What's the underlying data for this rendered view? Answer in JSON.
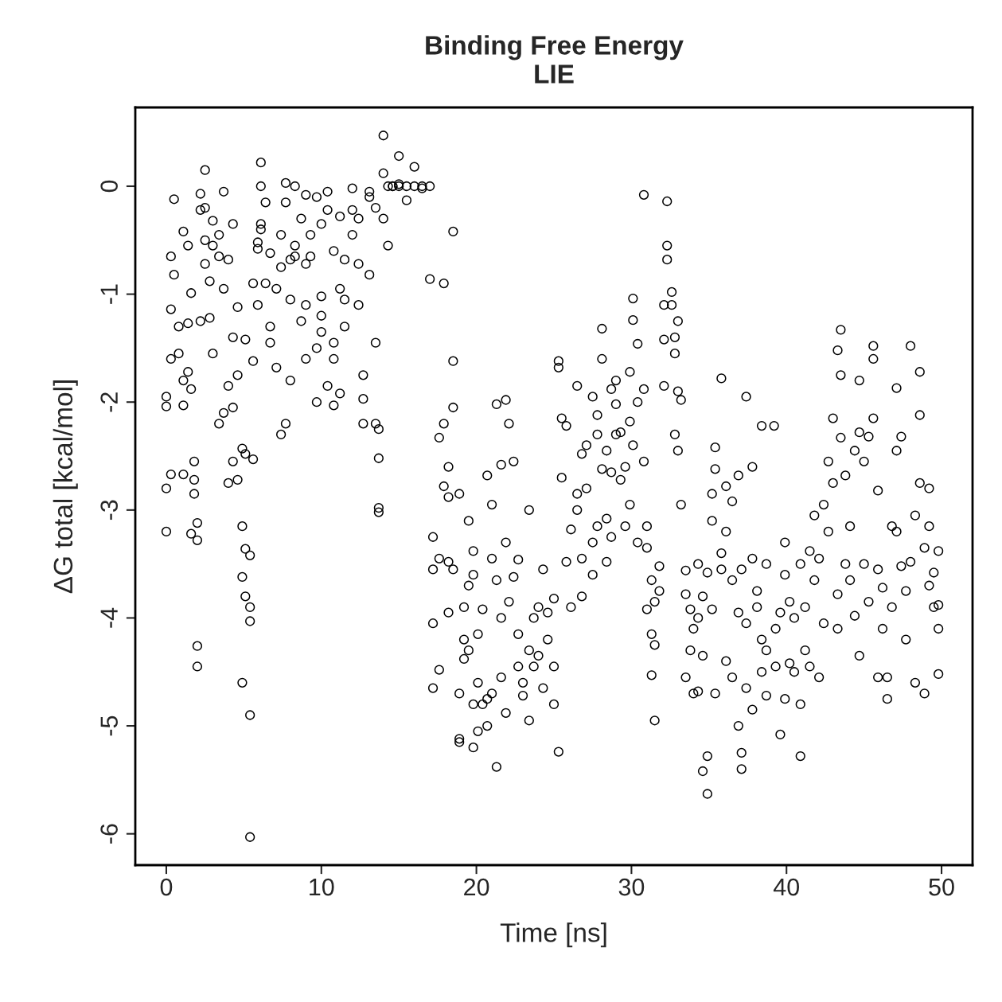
{
  "chart_data": {
    "type": "scatter",
    "title": "Binding Free Energy\nLIE",
    "xlabel": "Time [ns]",
    "ylabel": "ΔG total [kcal/mol]",
    "xlim": [
      -2,
      52
    ],
    "ylim": [
      -6.29,
      0.73
    ],
    "xticks": [
      0,
      10,
      20,
      30,
      40,
      50
    ],
    "yticks": [
      -6,
      -5,
      -4,
      -3,
      -2,
      -1,
      0
    ],
    "grid": false,
    "marker": "circle",
    "series": [
      {
        "color": "#000000",
        "x": [
          0.0,
          0.0,
          0.0,
          0.0,
          0.3,
          0.3,
          0.3,
          0.3,
          0.5,
          0.5,
          0.8,
          0.8,
          1.1,
          1.1,
          1.1,
          1.1,
          1.4,
          1.4,
          1.4,
          1.6,
          1.6,
          1.6,
          1.8,
          1.8,
          1.8,
          2.0,
          2.0,
          2.0,
          2.0,
          2.2,
          2.2,
          2.2,
          2.5,
          2.5,
          2.5,
          2.5,
          2.8,
          2.8,
          3.0,
          3.0,
          3.0,
          3.4,
          3.4,
          3.4,
          3.7,
          3.7,
          3.7,
          4.0,
          4.0,
          4.0,
          4.3,
          4.3,
          4.3,
          4.3,
          4.6,
          4.6,
          4.6,
          4.9,
          4.9,
          4.9,
          4.9,
          5.1,
          5.1,
          5.1,
          5.1,
          5.4,
          5.4,
          5.4,
          5.4,
          5.4,
          5.6,
          5.6,
          5.6,
          5.9,
          5.9,
          5.9,
          6.1,
          6.1,
          6.1,
          6.1,
          6.4,
          6.4,
          6.7,
          6.7,
          6.7,
          7.1,
          7.1,
          7.4,
          7.4,
          7.4,
          7.7,
          7.7,
          7.7,
          8.0,
          8.0,
          8.0,
          8.3,
          8.3,
          8.3,
          8.7,
          8.7,
          9.0,
          9.0,
          9.0,
          9.0,
          9.3,
          9.3,
          9.7,
          9.7,
          9.7,
          10.0,
          10.0,
          10.0,
          10.0,
          10.4,
          10.4,
          10.4,
          10.8,
          10.8,
          10.8,
          10.8,
          11.2,
          11.2,
          11.2,
          11.5,
          11.5,
          11.5,
          12.0,
          12.0,
          12.0,
          12.4,
          12.4,
          12.4,
          12.7,
          12.7,
          12.7,
          13.1,
          13.1,
          13.1,
          13.5,
          13.5,
          13.5,
          13.7,
          13.7,
          13.7,
          13.7,
          14.0,
          14.0,
          14.0,
          14.3,
          14.3,
          14.6,
          14.6,
          15.0,
          15.0,
          15.0,
          15.5,
          15.5,
          16.0,
          16.0,
          16.5,
          16.5,
          17.0,
          17.0,
          17.2,
          17.2,
          17.2,
          17.2,
          17.6,
          17.6,
          17.6,
          17.9,
          17.9,
          17.9,
          18.2,
          18.2,
          18.2,
          18.2,
          18.5,
          18.5,
          18.5,
          18.5,
          18.9,
          18.9,
          18.9,
          18.9,
          19.2,
          19.2,
          19.2,
          19.5,
          19.5,
          19.5,
          19.8,
          19.8,
          19.8,
          19.8,
          20.1,
          20.1,
          20.1,
          20.4,
          20.4,
          20.7,
          20.7,
          20.7,
          21.0,
          21.0,
          21.0,
          21.3,
          21.3,
          21.3,
          21.6,
          21.6,
          21.6,
          21.9,
          21.9,
          21.9,
          22.1,
          22.1,
          22.4,
          22.4,
          22.7,
          22.7,
          22.7,
          23.0,
          23.0,
          23.4,
          23.4,
          23.4,
          23.7,
          23.7,
          24.0,
          24.0,
          24.3,
          24.3,
          24.6,
          24.6,
          25.0,
          25.0,
          25.0,
          25.3,
          25.3,
          25.3,
          25.5,
          25.5,
          25.8,
          25.8,
          26.1,
          26.1,
          26.5,
          26.5,
          26.5,
          26.8,
          26.8,
          26.8,
          27.1,
          27.1,
          27.5,
          27.5,
          27.5,
          27.8,
          27.8,
          27.8,
          28.1,
          28.1,
          28.1,
          28.4,
          28.4,
          28.4,
          28.7,
          28.7,
          28.7,
          29.0,
          29.0,
          29.0,
          29.3,
          29.3,
          29.6,
          29.6,
          29.9,
          29.9,
          29.9,
          30.1,
          30.1,
          30.1,
          30.4,
          30.4,
          30.4,
          30.8,
          30.8,
          30.8,
          31.0,
          31.0,
          31.0,
          31.3,
          31.3,
          31.3,
          31.5,
          31.5,
          31.5,
          31.8,
          31.8,
          32.1,
          32.1,
          32.1,
          32.3,
          32.3,
          32.3,
          32.6,
          32.6,
          32.8,
          32.8,
          32.8,
          33.0,
          33.0,
          33.0,
          33.2,
          33.2,
          33.5,
          33.5,
          33.5,
          33.8,
          33.8,
          34.0,
          34.0,
          34.3,
          34.3,
          34.3,
          34.6,
          34.6,
          34.6,
          34.9,
          34.9,
          34.9,
          35.2,
          35.2,
          35.2,
          35.4,
          35.4,
          35.4,
          35.8,
          35.8,
          35.8,
          36.1,
          36.1,
          36.1,
          36.5,
          36.5,
          36.5,
          36.9,
          36.9,
          36.9,
          37.1,
          37.1,
          37.1,
          37.4,
          37.4,
          37.4,
          37.8,
          37.8,
          37.8,
          38.1,
          38.1,
          38.4,
          38.4,
          38.4,
          38.7,
          38.7,
          38.7,
          39.2,
          39.3,
          39.3,
          39.6,
          39.6,
          39.9,
          39.9,
          39.9,
          40.2,
          40.2,
          40.5,
          40.5,
          40.9,
          40.9,
          40.9,
          41.2,
          41.2,
          41.5,
          41.5,
          41.8,
          41.8,
          42.1,
          42.1,
          42.4,
          42.4,
          42.7,
          42.7,
          43.0,
          43.0,
          43.3,
          43.3,
          43.3,
          43.5,
          43.5,
          43.5,
          43.8,
          43.8,
          44.1,
          44.1,
          44.4,
          44.4,
          44.7,
          44.7,
          44.7,
          45.0,
          45.0,
          45.3,
          45.3,
          45.6,
          45.6,
          45.6,
          45.9,
          45.9,
          45.9,
          46.2,
          46.2,
          46.5,
          46.5,
          46.8,
          46.8,
          47.1,
          47.1,
          47.1,
          47.4,
          47.4,
          47.7,
          47.7,
          48.0,
          48.0,
          48.3,
          48.3,
          48.6,
          48.6,
          48.6,
          48.9,
          48.9,
          49.2,
          49.2,
          49.2,
          49.5,
          49.5,
          49.8,
          49.8,
          49.8,
          49.8
        ],
        "values": [
          -2.04,
          -2.8,
          -3.2,
          -1.95,
          -0.65,
          -1.14,
          -1.6,
          -2.67,
          -0.12,
          -0.82,
          -1.55,
          -1.3,
          -0.42,
          -1.8,
          -2.03,
          -2.67,
          -1.27,
          -0.55,
          -1.72,
          -0.99,
          -1.88,
          -3.22,
          -2.55,
          -2.85,
          -2.72,
          -4.26,
          -4.45,
          -3.28,
          -3.12,
          -0.22,
          -0.07,
          -1.25,
          0.15,
          -0.2,
          -0.5,
          -0.72,
          -1.22,
          -0.88,
          -0.32,
          -0.55,
          -1.55,
          -0.45,
          -0.65,
          -2.2,
          -0.05,
          -0.95,
          -2.1,
          -1.85,
          -2.75,
          -0.68,
          -0.35,
          -1.4,
          -2.55,
          -2.05,
          -1.12,
          -1.75,
          -2.72,
          -2.43,
          -3.15,
          -3.62,
          -4.6,
          -1.42,
          -2.48,
          -3.36,
          -3.8,
          -3.42,
          -3.9,
          -4.03,
          -4.9,
          -6.03,
          -1.62,
          -2.53,
          -0.9,
          -0.52,
          -0.58,
          -1.1,
          0.22,
          0.0,
          -0.35,
          -0.4,
          -0.15,
          -0.9,
          -1.3,
          -1.45,
          -0.62,
          -0.95,
          -1.68,
          -0.45,
          -2.3,
          -0.75,
          0.03,
          -0.15,
          -2.2,
          -1.05,
          -1.8,
          -0.68,
          0.0,
          -0.55,
          -0.65,
          -0.3,
          -1.25,
          -0.08,
          -0.72,
          -1.6,
          -1.1,
          -0.45,
          -0.65,
          -0.1,
          -1.5,
          -2.0,
          -0.35,
          -1.02,
          -1.35,
          -1.2,
          -0.05,
          -0.22,
          -1.85,
          -0.6,
          -1.45,
          -2.03,
          -1.6,
          -0.28,
          -0.95,
          -1.92,
          -1.05,
          -0.68,
          -1.3,
          -0.22,
          -0.45,
          -0.02,
          -1.1,
          -0.3,
          -0.72,
          -1.75,
          -2.2,
          -1.97,
          -0.05,
          -0.82,
          -0.1,
          -1.45,
          -2.2,
          -0.2,
          -2.52,
          -2.98,
          -3.02,
          -2.25,
          0.47,
          -0.3,
          0.12,
          -0.55,
          0.0,
          0.0,
          0.0,
          0.28,
          0.02,
          0.0,
          -0.13,
          0.0,
          0.0,
          0.18,
          0.0,
          -0.02,
          -0.86,
          0.0,
          -3.55,
          -3.25,
          -4.05,
          -4.65,
          -2.33,
          -3.45,
          -4.48,
          -0.9,
          -2.2,
          -2.78,
          -2.6,
          -3.48,
          -3.95,
          -2.88,
          -0.42,
          -1.62,
          -2.05,
          -3.55,
          -2.85,
          -4.7,
          -5.15,
          -5.12,
          -3.9,
          -4.38,
          -4.2,
          -3.1,
          -3.7,
          -4.3,
          -3.6,
          -4.8,
          -5.2,
          -3.38,
          -4.6,
          -5.05,
          -4.15,
          -4.8,
          -3.92,
          -4.75,
          -5.0,
          -2.68,
          -2.95,
          -3.45,
          -4.7,
          -5.38,
          -3.65,
          -2.02,
          -4.0,
          -4.55,
          -2.58,
          -1.98,
          -3.3,
          -4.88,
          -2.2,
          -3.85,
          -2.55,
          -3.62,
          -4.15,
          -4.45,
          -3.46,
          -4.72,
          -4.6,
          -4.95,
          -3.0,
          -4.3,
          -4.0,
          -4.45,
          -3.9,
          -4.35,
          -3.55,
          -4.65,
          -4.2,
          -3.95,
          -4.45,
          -4.8,
          -3.82,
          -5.24,
          -1.62,
          -1.68,
          -2.15,
          -2.7,
          -3.48,
          -2.22,
          -3.18,
          -3.9,
          -1.85,
          -2.85,
          -3.0,
          -3.45,
          -2.48,
          -3.8,
          -2.4,
          -2.8,
          -3.6,
          -3.3,
          -1.95,
          -2.12,
          -2.3,
          -3.15,
          -1.32,
          -2.62,
          -1.6,
          -2.45,
          -3.48,
          -3.08,
          -1.88,
          -2.65,
          -3.25,
          -1.8,
          -2.3,
          -2.02,
          -2.72,
          -2.28,
          -2.6,
          -3.15,
          -1.72,
          -2.18,
          -2.95,
          -1.04,
          -1.24,
          -2.4,
          -1.46,
          -2.0,
          -3.3,
          -0.08,
          -1.88,
          -2.55,
          -3.92,
          -3.15,
          -3.35,
          -4.15,
          -3.65,
          -4.53,
          -4.95,
          -3.85,
          -4.25,
          -3.52,
          -3.75,
          -1.1,
          -1.42,
          -1.85,
          -0.14,
          -0.55,
          -0.68,
          -0.98,
          -1.1,
          -1.55,
          -1.4,
          -2.3,
          -1.9,
          -2.45,
          -1.25,
          -1.98,
          -2.95,
          -3.56,
          -3.78,
          -4.55,
          -3.92,
          -4.3,
          -4.1,
          -4.7,
          -3.5,
          -4.0,
          -4.68,
          -3.8,
          -4.35,
          -5.42,
          -5.63,
          -5.28,
          -3.58,
          -3.1,
          -3.92,
          -2.85,
          -2.42,
          -2.62,
          -4.7,
          -3.55,
          -3.4,
          -1.78,
          -3.2,
          -2.78,
          -4.4,
          -2.92,
          -3.65,
          -4.55,
          -2.68,
          -3.95,
          -5.0,
          -5.25,
          -5.4,
          -3.55,
          -1.95,
          -4.05,
          -4.65,
          -3.45,
          -2.6,
          -4.85,
          -3.75,
          -3.9,
          -2.22,
          -4.2,
          -4.5,
          -3.5,
          -4.3,
          -4.72,
          -2.22,
          -4.1,
          -4.45,
          -3.95,
          -5.08,
          -3.3,
          -3.6,
          -4.75,
          -4.42,
          -3.85,
          -4.0,
          -4.5,
          -5.28,
          -4.8,
          -3.5,
          -3.9,
          -4.3,
          -3.38,
          -4.45,
          -3.05,
          -3.65,
          -4.55,
          -3.45,
          -4.05,
          -2.95,
          -2.55,
          -3.2,
          -2.15,
          -2.75,
          -1.52,
          -3.78,
          -4.1,
          -1.33,
          -1.75,
          -2.33,
          -2.68,
          -3.5,
          -3.65,
          -3.15,
          -2.45,
          -3.98,
          -4.35,
          -2.28,
          -1.8,
          -2.55,
          -3.5,
          -2.32,
          -3.85,
          -1.48,
          -1.6,
          -2.15,
          -2.82,
          -3.55,
          -4.55,
          -4.1,
          -3.72,
          -4.55,
          -4.75,
          -3.9,
          -3.15,
          -1.87,
          -2.45,
          -3.2,
          -3.52,
          -2.32,
          -3.75,
          -4.2,
          -1.48,
          -3.48,
          -4.6,
          -3.05,
          -1.72,
          -2.12,
          -2.75,
          -4.7,
          -3.35,
          -3.7,
          -3.15,
          -2.8,
          -3.58,
          -3.9,
          -4.52,
          -3.88,
          -3.38,
          -4.1
        ]
      }
    ]
  }
}
